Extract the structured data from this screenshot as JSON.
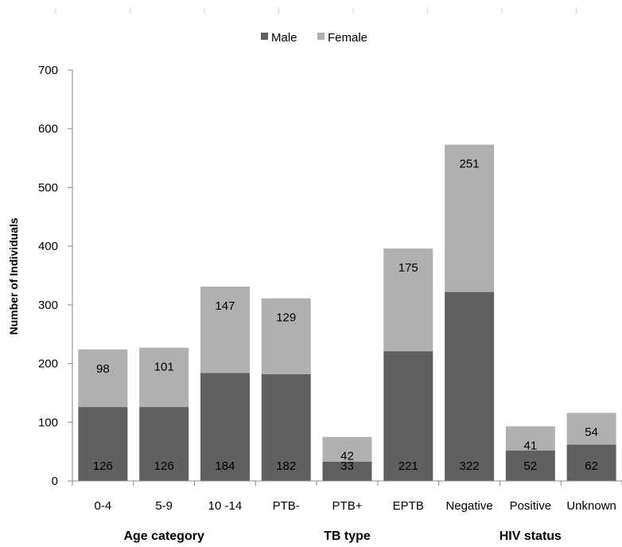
{
  "chart_data": {
    "type": "bar",
    "stacked": true,
    "categories": [
      "0-4",
      "5-9",
      "10 -14",
      "PTB-",
      "PTB+",
      "EPTB",
      "Negative",
      "Positive",
      "Unknown"
    ],
    "series": [
      {
        "name": "Male",
        "color": "#606060",
        "values": [
          126,
          126,
          184,
          182,
          33,
          221,
          322,
          52,
          62
        ]
      },
      {
        "name": "Female",
        "color": "#b0b0b0",
        "values": [
          98,
          101,
          147,
          129,
          42,
          175,
          251,
          41,
          54
        ]
      }
    ],
    "ylabel": "Number of Individuals",
    "ylim": [
      0,
      700
    ],
    "yticks": [
      0,
      100,
      200,
      300,
      400,
      500,
      600,
      700
    ],
    "groups": [
      {
        "label": "Age category",
        "categories": [
          "0-4",
          "5-9",
          "10 -14"
        ]
      },
      {
        "label": "TB type",
        "categories": [
          "PTB-",
          "PTB+",
          "EPTB"
        ]
      },
      {
        "label": "HIV status",
        "categories": [
          "Negative",
          "Positive",
          "Unknown"
        ]
      }
    ],
    "legend_position": "top",
    "grid": false
  }
}
